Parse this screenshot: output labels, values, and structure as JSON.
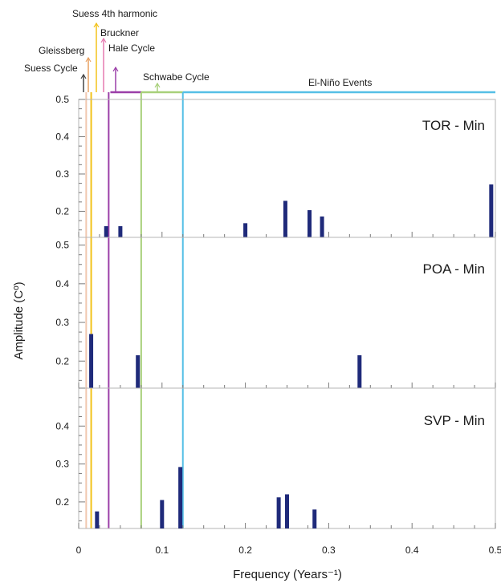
{
  "chart_data": {
    "type": "bar",
    "xlabel": "Frequency (Years⁻¹)",
    "ylabel": "Amplitude (Cº)",
    "xlim": [
      0,
      0.5
    ],
    "x_ticks": [
      "0",
      "0.1",
      "0.2",
      "0.3",
      "0.4",
      "0.5"
    ],
    "x_tick_values": [
      0,
      0.1,
      0.2,
      0.3,
      0.4,
      0.5
    ],
    "grid": false,
    "cycle_markers": [
      {
        "name": "Suess Cycle",
        "x": 0.005,
        "color": "#444444"
      },
      {
        "name": "Gleissberg",
        "x": 0.012,
        "color": "#e8a060"
      },
      {
        "name": "Suess 4th harmonic",
        "x": 0.02,
        "color": "#f2c21a"
      },
      {
        "name": "Bruckner",
        "x": 0.029,
        "color": "#e57ab0"
      },
      {
        "name": "Hale Cycle",
        "x": 0.045,
        "color": "#9b3fa8"
      },
      {
        "name": "Schwabe Cycle",
        "x": 0.09,
        "color": "#a8d07a"
      },
      {
        "name": "El-Niño Events",
        "x": 0.31,
        "color": "#55bfe6"
      }
    ],
    "cycle_bands": [
      {
        "x0": 0.038,
        "x1": 0.075,
        "color": "#9b3fa8"
      },
      {
        "x0": 0.075,
        "x1": 0.125,
        "color": "#a8d07a"
      },
      {
        "x0": 0.125,
        "x1": 0.5,
        "color": "#55bfe6"
      }
    ],
    "vertical_lines": [
      {
        "x": 0.009,
        "color": "#f1c8b0"
      },
      {
        "x": 0.015,
        "color": "#f2c21a"
      },
      {
        "x": 0.036,
        "color": "#9b3fa8"
      },
      {
        "x": 0.075,
        "color": "#a8d07a"
      },
      {
        "x": 0.125,
        "color": "#55bfe6"
      }
    ],
    "bar_color": "#1f2a7a",
    "panels": [
      {
        "label": "TOR - Min",
        "ylim": [
          0.13,
          0.5
        ],
        "y_ticks": [
          "0.2",
          "0.3",
          "0.4",
          "0.5"
        ],
        "y_tick_values": [
          0.2,
          0.3,
          0.4,
          0.5
        ],
        "bars": [
          {
            "x": 0.033,
            "y": 0.16
          },
          {
            "x": 0.05,
            "y": 0.16
          },
          {
            "x": 0.2,
            "y": 0.168
          },
          {
            "x": 0.248,
            "y": 0.228
          },
          {
            "x": 0.277,
            "y": 0.203
          },
          {
            "x": 0.292,
            "y": 0.186
          },
          {
            "x": 0.495,
            "y": 0.272
          }
        ]
      },
      {
        "label": "POA - Min",
        "ylim": [
          0.13,
          0.52
        ],
        "y_ticks": [
          "0.2",
          "0.3",
          "0.4",
          "0.5"
        ],
        "y_tick_values": [
          0.2,
          0.3,
          0.4,
          0.5
        ],
        "bars": [
          {
            "x": 0.015,
            "y": 0.27
          },
          {
            "x": 0.071,
            "y": 0.215
          },
          {
            "x": 0.337,
            "y": 0.215
          }
        ]
      },
      {
        "label": "SVP - Min",
        "ylim": [
          0.13,
          0.5
        ],
        "y_ticks": [
          "0.2",
          "0.3",
          "0.4"
        ],
        "y_tick_values": [
          0.2,
          0.3,
          0.4
        ],
        "bars": [
          {
            "x": 0.022,
            "y": 0.175
          },
          {
            "x": 0.1,
            "y": 0.205
          },
          {
            "x": 0.122,
            "y": 0.292
          },
          {
            "x": 0.24,
            "y": 0.212
          },
          {
            "x": 0.25,
            "y": 0.22
          },
          {
            "x": 0.283,
            "y": 0.18
          }
        ]
      }
    ]
  }
}
